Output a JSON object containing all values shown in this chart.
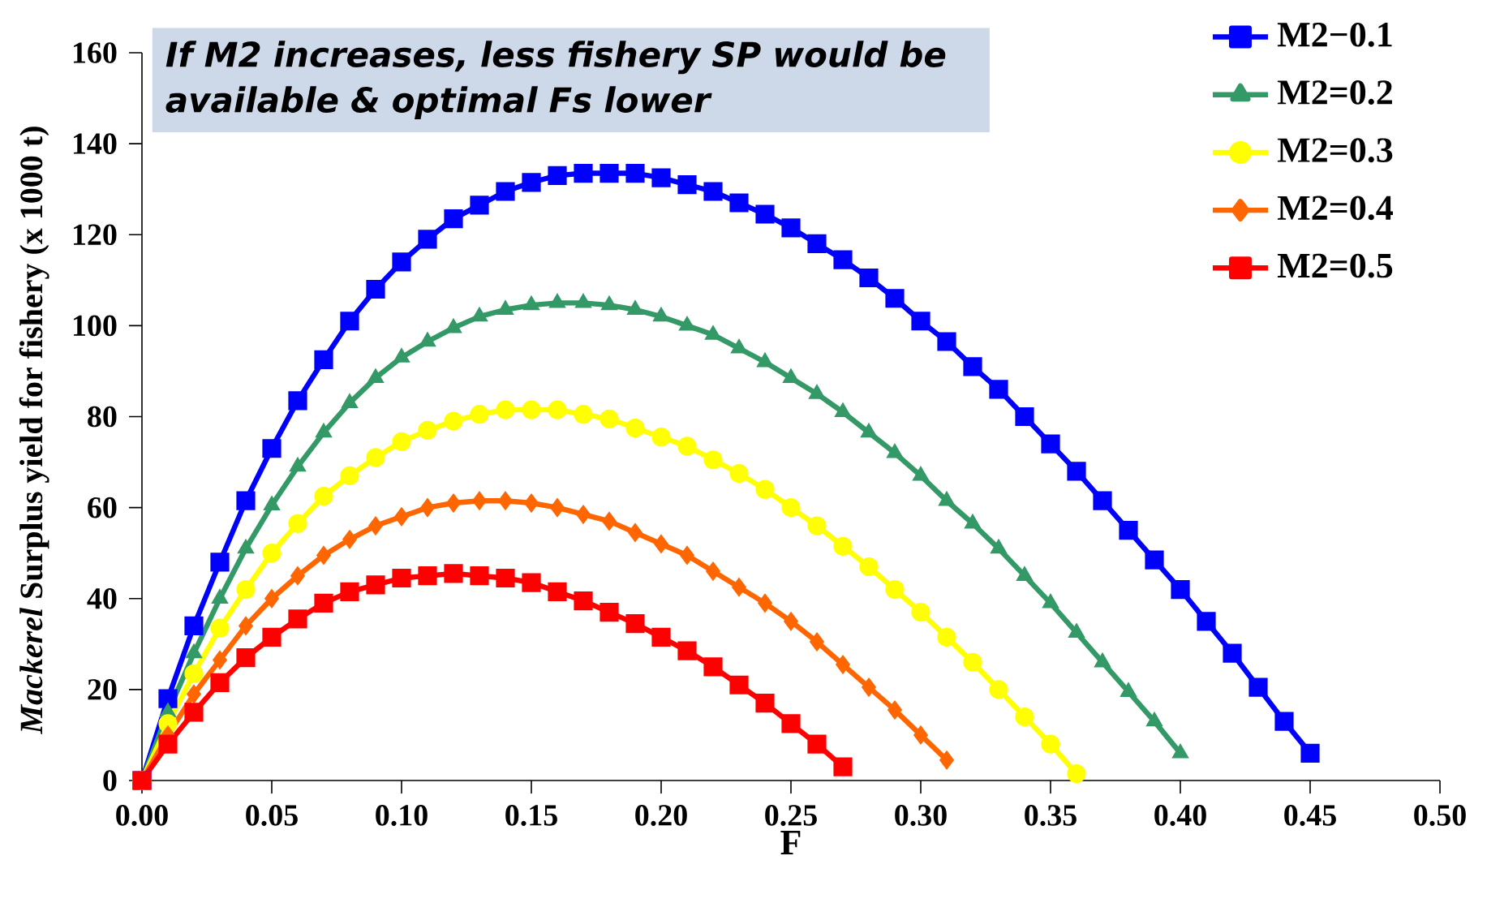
{
  "chart_data": {
    "type": "line",
    "xlabel": "F",
    "ylabel": "*Mackerel*  Surplus yield for fishery (x 1000 t)",
    "annotations": [
      "If M2 increases, less fishery SP would be available & optimal Fs lower"
    ],
    "x": [
      0,
      0.01,
      0.02,
      0.03,
      0.04,
      0.05,
      0.06,
      0.07,
      0.08,
      0.09,
      0.1,
      0.11,
      0.12,
      0.13,
      0.14,
      0.15,
      0.16,
      0.17,
      0.18,
      0.19,
      0.2,
      0.21,
      0.22,
      0.23,
      0.24,
      0.25,
      0.26,
      0.27,
      0.28,
      0.29,
      0.3,
      0.31,
      0.32,
      0.33,
      0.34,
      0.35,
      0.36,
      0.37,
      0.38,
      0.39,
      0.4,
      0.41,
      0.42,
      0.43,
      0.44,
      0.45
    ],
    "series": [
      {
        "name": "M2−0.1",
        "color": "#0000ff",
        "marker": "square",
        "values": [
          0,
          18,
          34,
          48,
          61.5,
          73,
          83.5,
          92.5,
          101,
          108,
          114,
          119,
          123.5,
          126.5,
          129.5,
          131.5,
          133,
          133.5,
          133.5,
          133.5,
          132.5,
          131,
          129.5,
          127,
          124.5,
          121.5,
          118,
          114.5,
          110.5,
          106,
          101,
          96.5,
          91,
          86,
          80,
          74,
          68,
          61.5,
          55,
          48.5,
          42,
          35,
          28,
          20.5,
          13,
          6
        ]
      },
      {
        "name": "M2=0.2",
        "color": "#339966",
        "marker": "triangle",
        "values": [
          0,
          15,
          28,
          40,
          51,
          60.5,
          69,
          76.5,
          83,
          88.5,
          93,
          96.5,
          99.5,
          102,
          103.5,
          104.5,
          105,
          105,
          104.5,
          103.5,
          102,
          100,
          98,
          95,
          92,
          88.5,
          85,
          81,
          76.5,
          72,
          67,
          61.5,
          56.5,
          51,
          45,
          39,
          32.5,
          26,
          19.5,
          13,
          6,
          null,
          null,
          null,
          null,
          null
        ]
      },
      {
        "name": "M2=0.3",
        "color": "#ffff00",
        "marker": "circle",
        "values": [
          0,
          12.5,
          23.5,
          33.5,
          42,
          50,
          56.5,
          62.5,
          67,
          71,
          74.5,
          77,
          79,
          80.5,
          81.5,
          81.5,
          81.5,
          80.5,
          79.5,
          77.5,
          75.5,
          73.5,
          70.5,
          67.5,
          64,
          60,
          56,
          51.5,
          47,
          42,
          37,
          31.5,
          26,
          20,
          14,
          8,
          1.5,
          null,
          null,
          null,
          null,
          null,
          null,
          null,
          null,
          null
        ]
      },
      {
        "name": "M2=0.4",
        "color": "#ff6600",
        "marker": "diamond",
        "values": [
          0,
          10,
          19,
          26.5,
          34,
          40,
          45,
          49.5,
          53,
          56,
          58,
          60,
          61,
          61.5,
          61.5,
          61,
          60,
          58.5,
          57,
          54.5,
          52,
          49.5,
          46,
          42.5,
          39,
          35,
          30.5,
          25.5,
          20.5,
          15.5,
          10,
          4.5,
          null,
          null,
          null,
          null,
          null,
          null,
          null,
          null,
          null,
          null,
          null,
          null,
          null,
          null
        ]
      },
      {
        "name": "M2=0.5",
        "color": "#ff0000",
        "marker": "square",
        "values": [
          0,
          8,
          15,
          21.5,
          27,
          31.5,
          35.5,
          39,
          41.5,
          43,
          44.5,
          45,
          45.5,
          45,
          44.5,
          43.5,
          41.5,
          39.5,
          37,
          34.5,
          31.5,
          28.5,
          25,
          21,
          17,
          12.5,
          8,
          3,
          null,
          null,
          null,
          null,
          null,
          null,
          null,
          null,
          null,
          null,
          null,
          null,
          null,
          null,
          null,
          null,
          null,
          null
        ]
      }
    ],
    "xlim": [
      0,
      0.5
    ],
    "ylim": [
      0,
      160
    ],
    "xticks": [
      {
        "value": 0,
        "label": "0.00"
      },
      {
        "value": 0.05,
        "label": "0.05"
      },
      {
        "value": 0.1,
        "label": "0.10"
      },
      {
        "value": 0.15,
        "label": "0.15"
      },
      {
        "value": 0.2,
        "label": "0.20"
      },
      {
        "value": 0.25,
        "label": "0.25"
      },
      {
        "value": 0.3,
        "label": "0.30"
      },
      {
        "value": 0.35,
        "label": "0.35"
      },
      {
        "value": 0.4,
        "label": "0.40"
      },
      {
        "value": 0.45,
        "label": "0.45"
      },
      {
        "value": 0.5,
        "label": "0.50"
      }
    ],
    "yticks": [
      0,
      20,
      40,
      60,
      80,
      100,
      120,
      140,
      160
    ],
    "grid": false,
    "legend": "top right"
  }
}
